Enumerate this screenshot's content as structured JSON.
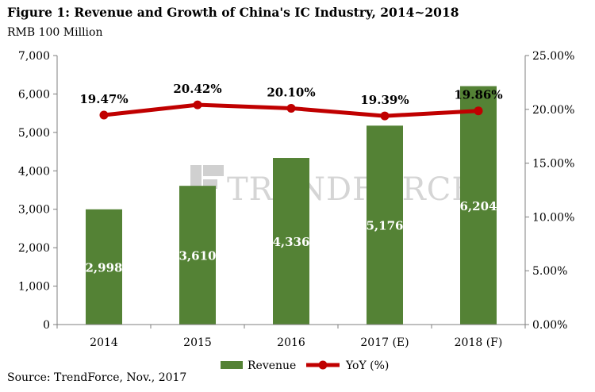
{
  "figure": {
    "title": "Figure 1: Revenue and Growth of China's IC Industry, 2014~2018",
    "unit_label": "RMB 100 Million",
    "source": "Source: TrendForce, Nov., 2017",
    "watermark": "TRENDFORCE"
  },
  "chart_data": {
    "type": "bar+line",
    "categories": [
      "2014",
      "2015",
      "2016",
      "2017 (E)",
      "2018 (F)"
    ],
    "series": [
      {
        "name": "Revenue",
        "type": "bar",
        "axis": "left",
        "values": [
          2998,
          3610,
          4336,
          5176,
          6204
        ],
        "labels": [
          "2,998",
          "3,610",
          "4,336",
          "5,176",
          "6,204"
        ],
        "color": "#548235"
      },
      {
        "name": "YoY (%)",
        "type": "line",
        "axis": "right",
        "values": [
          19.47,
          20.42,
          20.1,
          19.39,
          19.86
        ],
        "labels": [
          "19.47%",
          "20.42%",
          "20.10%",
          "19.39%",
          "19.86%"
        ],
        "color": "#c00000"
      }
    ],
    "y_left": {
      "min": 0,
      "max": 7000,
      "ticks": [
        0,
        1000,
        2000,
        3000,
        4000,
        5000,
        6000,
        7000
      ],
      "tick_labels": [
        "0",
        "1,000",
        "2,000",
        "3,000",
        "4,000",
        "5,000",
        "6,000",
        "7,000"
      ]
    },
    "y_right": {
      "min": 0,
      "max": 25,
      "ticks": [
        0,
        5,
        10,
        15,
        20,
        25
      ],
      "tick_labels": [
        "0.00%",
        "5.00%",
        "10.00%",
        "15.00%",
        "20.00%",
        "25.00%"
      ]
    },
    "grid": false,
    "legend_position": "bottom"
  }
}
